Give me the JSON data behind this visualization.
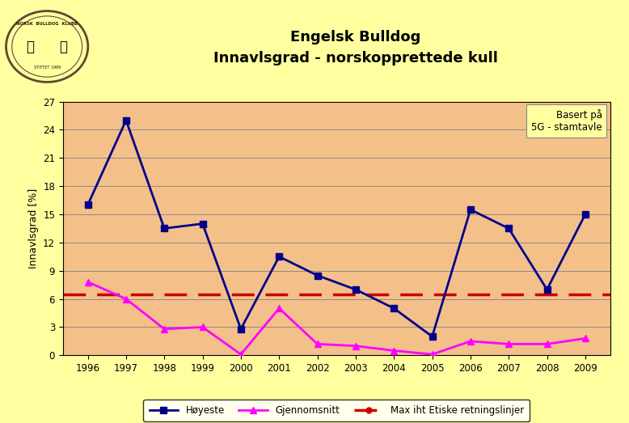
{
  "title_line1": "Engelsk Bulldog",
  "title_line2": "Innavlsgrad - norskopprettede kull",
  "xlabel": "",
  "ylabel": "Innavlsgrad [%]",
  "years": [
    1996,
    1997,
    1998,
    1999,
    2000,
    2001,
    2002,
    2003,
    2004,
    2005,
    2006,
    2007,
    2008,
    2009
  ],
  "highest": [
    16.0,
    25.0,
    13.5,
    14.0,
    2.8,
    10.5,
    8.5,
    7.0,
    5.0,
    2.0,
    15.5,
    13.5,
    7.0,
    15.0
  ],
  "average": [
    7.8,
    6.0,
    2.8,
    3.0,
    0.1,
    5.0,
    1.2,
    1.0,
    0.5,
    0.1,
    1.5,
    1.2,
    1.2,
    1.8
  ],
  "max_ethics": 6.5,
  "ylim": [
    0,
    27
  ],
  "yticks": [
    0,
    3,
    6,
    9,
    12,
    15,
    18,
    21,
    24,
    27
  ],
  "highest_color": "#00008B",
  "average_color": "#FF00FF",
  "ethics_color": "#CC0000",
  "plot_bg_color": "#F4C08A",
  "fig_bg_color": "#FFFFA0",
  "annotation_text": "Basert på\n5G - stamtavle",
  "annotation_bg": "#FFFFA0",
  "legend_labels": [
    "Høyeste",
    "Gjennomsnitt",
    "Max iht Etiske retningslinjer"
  ],
  "title_fontsize": 13,
  "axis_label_fontsize": 9,
  "tick_fontsize": 8.5
}
